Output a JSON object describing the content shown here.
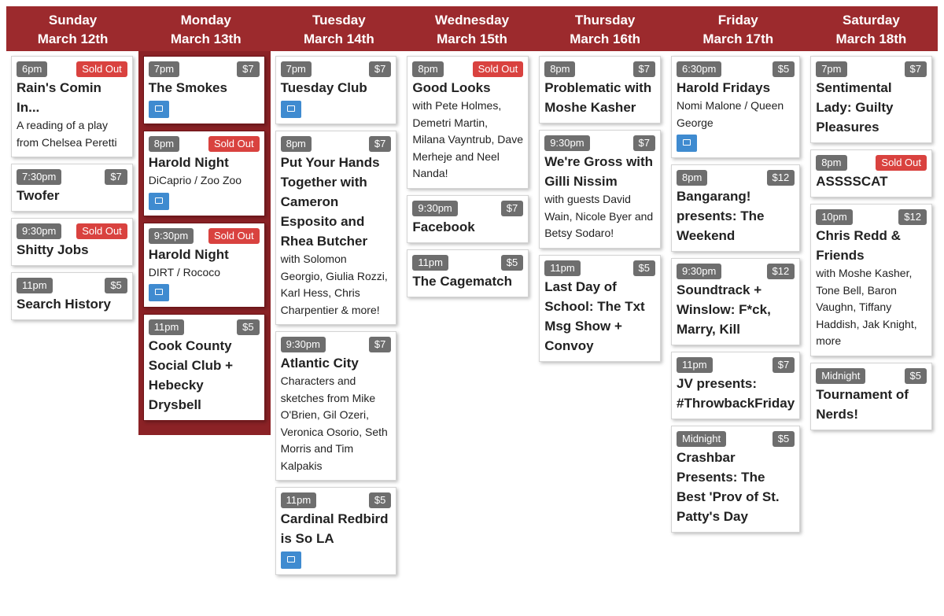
{
  "days": [
    {
      "day": "Sunday",
      "date": "March 12th",
      "events": [
        {
          "time": "6pm",
          "status": "Sold Out",
          "title": "Rain's Comin In...",
          "description": "A reading of a play from Chelsea Peretti"
        },
        {
          "time": "7:30pm",
          "price": "$7",
          "title": "Twofer"
        },
        {
          "time": "9:30pm",
          "status": "Sold Out",
          "title": "Shitty Jobs"
        },
        {
          "time": "11pm",
          "price": "$5",
          "title": "Search History"
        }
      ]
    },
    {
      "day": "Monday",
      "date": "March 13th",
      "highlight": true,
      "events": [
        {
          "time": "7pm",
          "price": "$7",
          "title": "The Smokes",
          "icon": true
        },
        {
          "time": "8pm",
          "status": "Sold Out",
          "title": "Harold Night",
          "description": "DiCaprio / Zoo Zoo",
          "icon": true
        },
        {
          "time": "9:30pm",
          "status": "Sold Out",
          "title": "Harold Night",
          "description": "DIRT / Rococo",
          "icon": true
        },
        {
          "time": "11pm",
          "price": "$5",
          "title": "Cook County Social Club + Hebecky Drysbell"
        }
      ]
    },
    {
      "day": "Tuesday",
      "date": "March 14th",
      "events": [
        {
          "time": "7pm",
          "price": "$7",
          "title": "Tuesday Club",
          "icon": true
        },
        {
          "time": "8pm",
          "price": "$7",
          "title": "Put Your Hands Together with Cameron Esposito and Rhea Butcher",
          "description": "with Solomon Georgio, Giulia Rozzi, Karl Hess, Chris Charpentier & more!"
        },
        {
          "time": "9:30pm",
          "price": "$7",
          "title": "Atlantic City",
          "description": "Characters and sketches from Mike O'Brien, Gil Ozeri, Veronica Osorio, Seth Morris and Tim Kalpakis"
        },
        {
          "time": "11pm",
          "price": "$5",
          "title": "Cardinal Redbird is So LA",
          "icon": true
        }
      ]
    },
    {
      "day": "Wednesday",
      "date": "March 15th",
      "events": [
        {
          "time": "8pm",
          "status": "Sold Out",
          "title": "Good Looks",
          "description": "with Pete Holmes, Demetri Martin, Milana Vayntrub, Dave Merheje and Neel Nanda!"
        },
        {
          "time": "9:30pm",
          "price": "$7",
          "title": "Facebook"
        },
        {
          "time": "11pm",
          "price": "$5",
          "title": "The Cagematch"
        }
      ]
    },
    {
      "day": "Thursday",
      "date": "March 16th",
      "events": [
        {
          "time": "8pm",
          "price": "$7",
          "title": "Problematic with Moshe Kasher"
        },
        {
          "time": "9:30pm",
          "price": "$7",
          "title": "We're Gross with Gilli Nissim",
          "description": "with guests David Wain, Nicole Byer and Betsy Sodaro!"
        },
        {
          "time": "11pm",
          "price": "$5",
          "title": "Last Day of School: The Txt Msg Show + Convoy"
        }
      ]
    },
    {
      "day": "Friday",
      "date": "March 17th",
      "events": [
        {
          "time": "6:30pm",
          "price": "$5",
          "title": "Harold Fridays",
          "description": "Nomi Malone / Queen George",
          "icon": true
        },
        {
          "time": "8pm",
          "price": "$12",
          "title": "Bangarang! presents: The Weekend"
        },
        {
          "time": "9:30pm",
          "price": "$12",
          "title": "Soundtrack + Winslow: F*ck, Marry, Kill"
        },
        {
          "time": "11pm",
          "price": "$7",
          "title": "JV presents: #ThrowbackFriday"
        },
        {
          "time": "Midnight",
          "price": "$5",
          "title": "Crashbar Presents: The Best 'Prov of St. Patty's Day"
        }
      ]
    },
    {
      "day": "Saturday",
      "date": "March 18th",
      "events": [
        {
          "time": "7pm",
          "price": "$7",
          "title": "Sentimental Lady: Guilty Pleasures"
        },
        {
          "time": "8pm",
          "status": "Sold Out",
          "title": "ASSSSCAT"
        },
        {
          "time": "10pm",
          "price": "$12",
          "title": "Chris Redd & Friends",
          "description": "with Moshe Kasher, Tone Bell, Baron Vaughn, Tiffany Haddish, Jak Knight, more"
        },
        {
          "time": "Midnight",
          "price": "$5",
          "title": "Tournament of Nerds!"
        }
      ]
    }
  ]
}
